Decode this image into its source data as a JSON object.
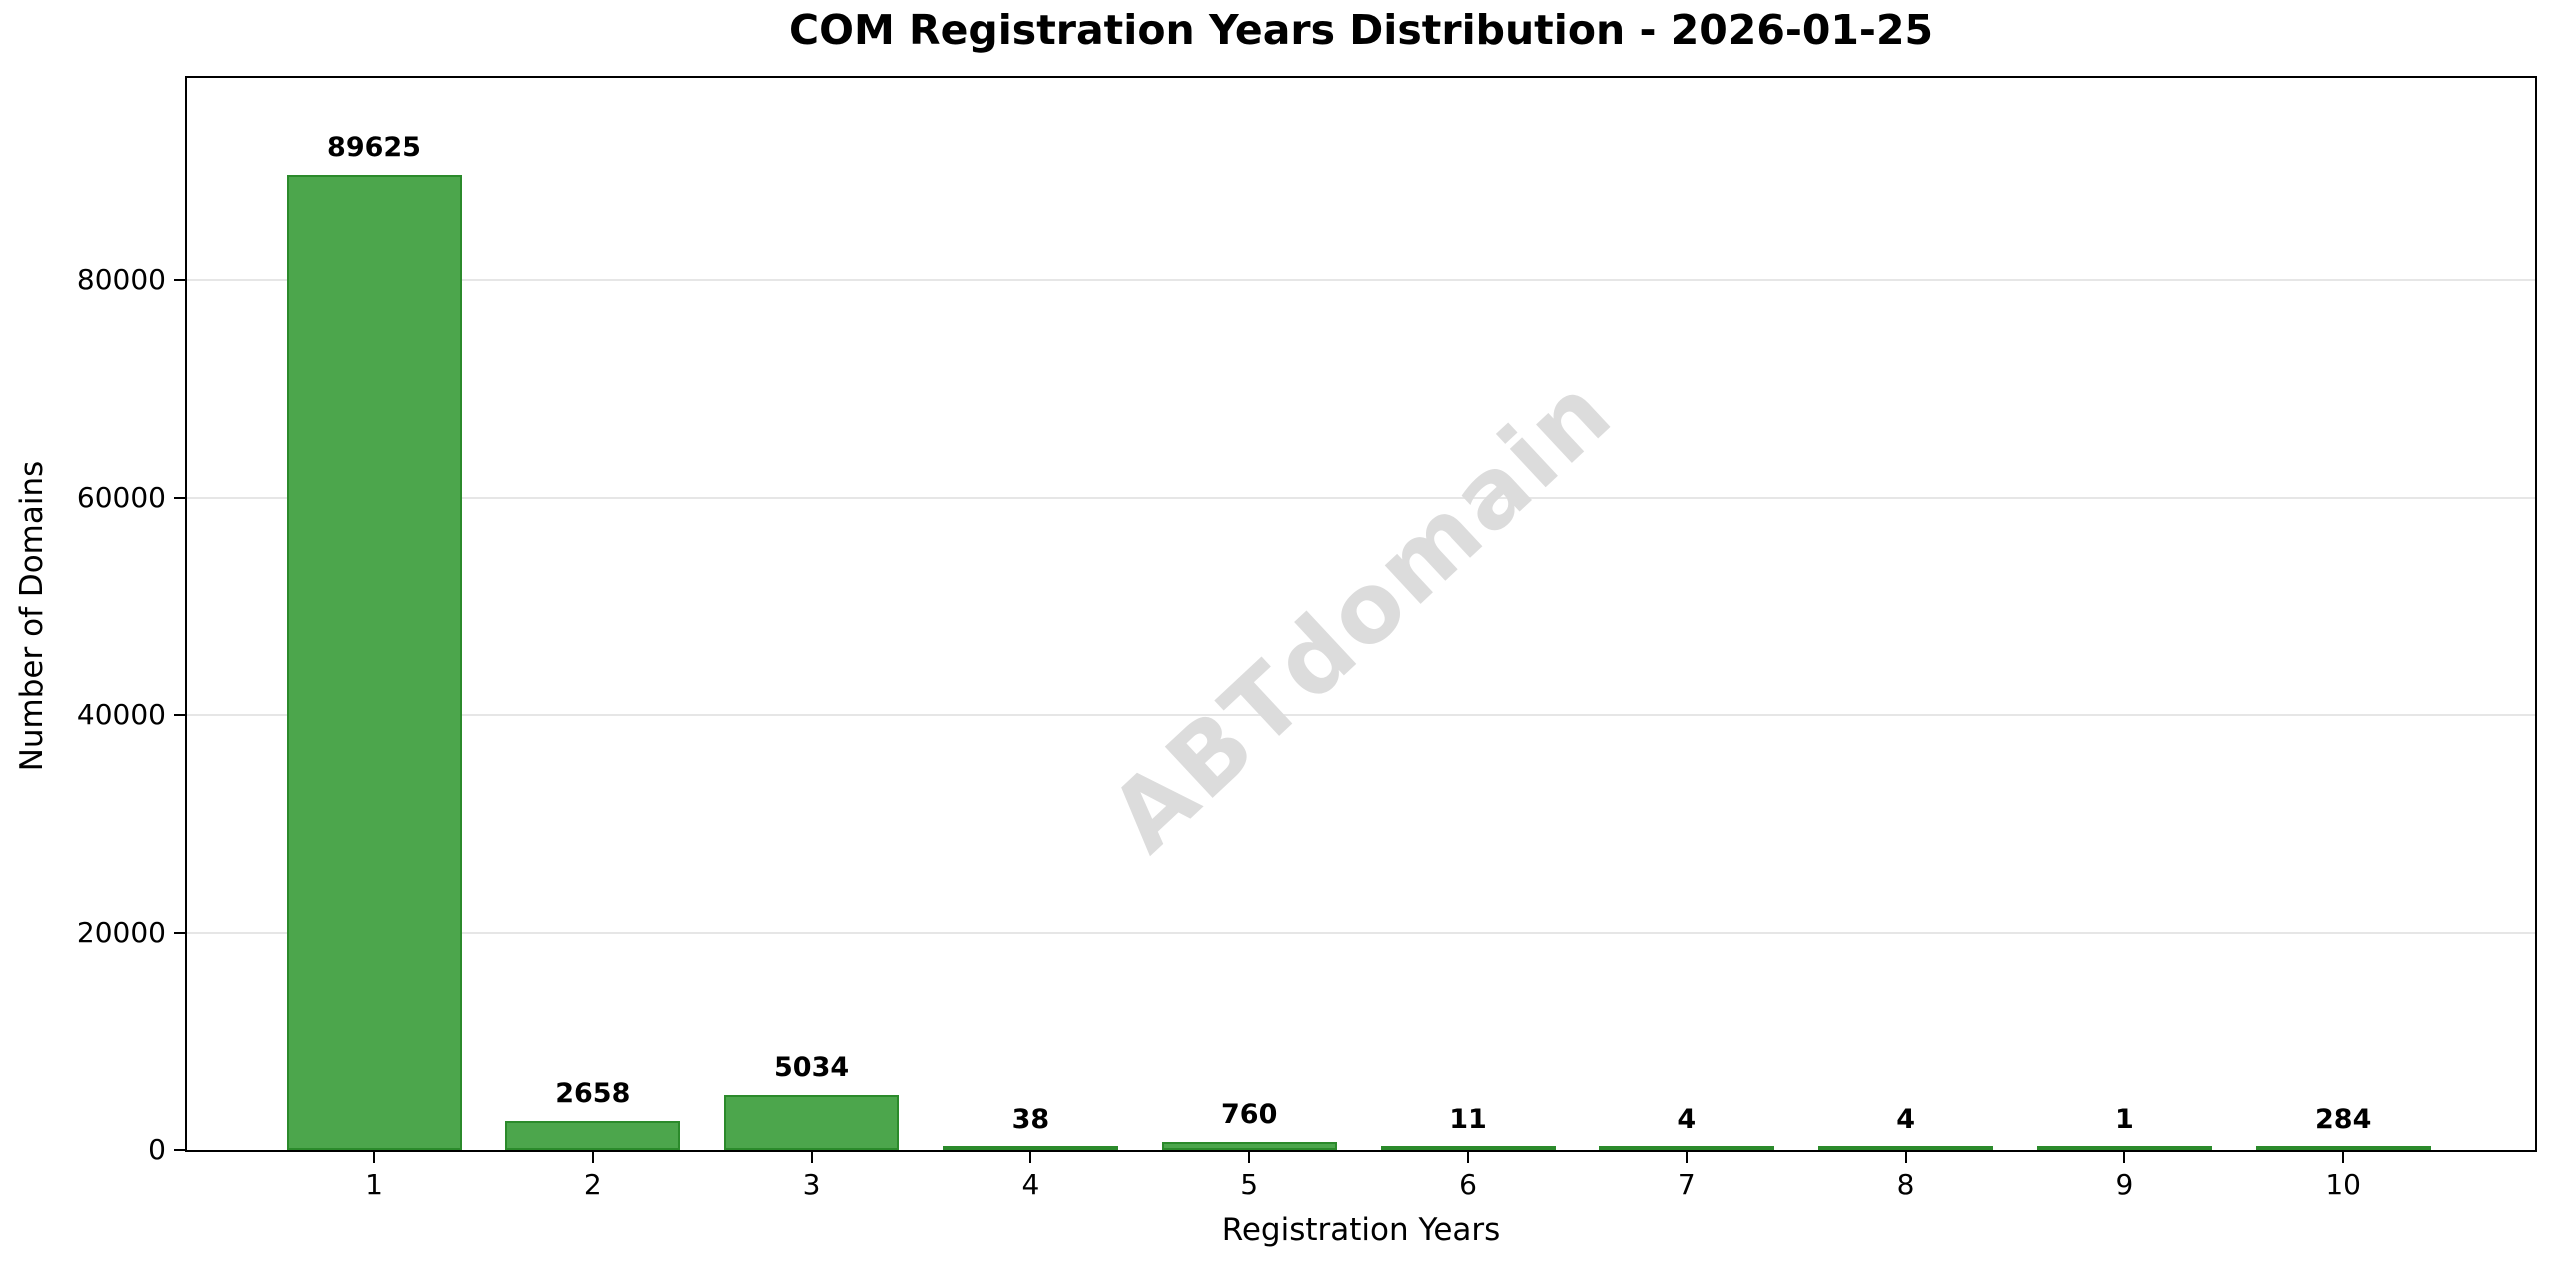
{
  "page": {
    "background_color": "#ffffff"
  },
  "chart_data": {
    "type": "bar",
    "title": "COM Registration Years Distribution - 2026-01-25",
    "xlabel": "Registration Years",
    "ylabel": "Number of Domains",
    "categories": [
      "1",
      "2",
      "3",
      "4",
      "5",
      "6",
      "7",
      "8",
      "9",
      "10"
    ],
    "values": [
      89625,
      2658,
      5034,
      38,
      760,
      11,
      4,
      4,
      1,
      284
    ],
    "bar_labels": [
      "89625",
      "2658",
      "5034",
      "38",
      "760",
      "11",
      "4",
      "4",
      "1",
      "284"
    ],
    "y_ticks": [
      0,
      20000,
      40000,
      60000,
      80000
    ],
    "y_tick_labels": [
      "0",
      "20000",
      "40000",
      "60000",
      "80000"
    ],
    "ylim": [
      0,
      98587
    ],
    "grid": "horizontal",
    "gridline_color": "#e6e6e6",
    "legend": "none",
    "bar_fill_color": "#4CA64C",
    "bar_edge_color": "#2B8A2B",
    "spine_color": "#000000",
    "watermark": {
      "text": "ABTdomain",
      "color": "#DCDCDC",
      "rotation_deg": -43
    }
  }
}
